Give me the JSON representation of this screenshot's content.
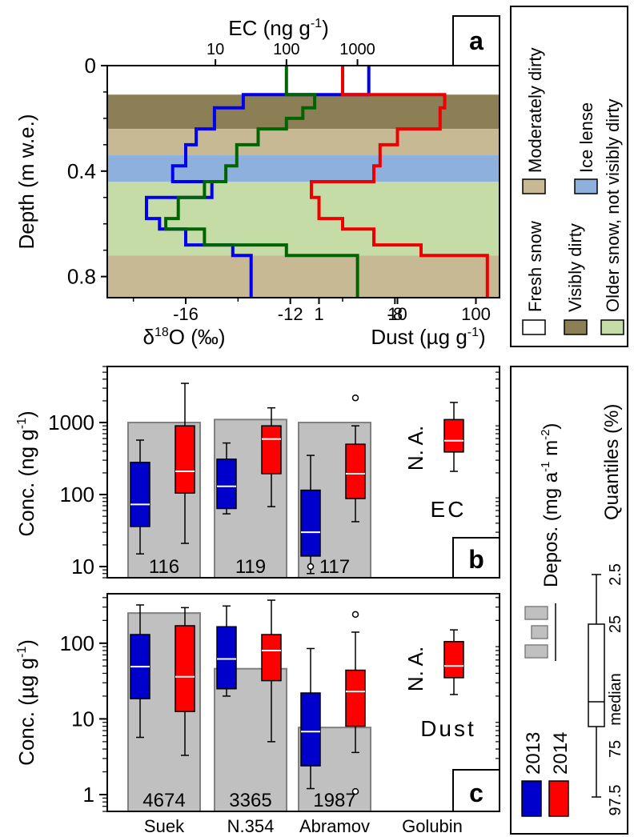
{
  "colors": {
    "fresh_snow": "#ffffff",
    "visibly_dirty": "#8c7f55",
    "moderately_dirty": "#c7b993",
    "ice_lense": "#8eb0dd",
    "older_snow": "#c6dca6",
    "d18o_line": "#0000ee",
    "ec_line": "#006400",
    "dust_line": "#ee0000",
    "box_2013": "#0000cc",
    "box_2014": "#ff0000",
    "deposition_bar": "#c0c0c0",
    "deposition_text": "#808080"
  },
  "panel_a": {
    "panel_label": "a",
    "top_axis_title": "EC (ng g",
    "top_axis_title_sup": "-1",
    "top_axis_title_end": ")",
    "top_ticks": [
      "10",
      "100",
      "1000"
    ],
    "y_axis_title": "Depth (m w.e.)",
    "y_ticks": [
      "0",
      "0.4",
      "0.8"
    ],
    "bottom_left_ticks": [
      "-16",
      "-12",
      "-8"
    ],
    "bottom_left_title_main": "δ",
    "bottom_left_title_sup": "18",
    "bottom_left_title_end": "O (‰)",
    "bottom_right_ticks": [
      "1",
      "10",
      "100"
    ],
    "bottom_right_title": "Dust (µg g",
    "bottom_right_title_sup": "-1",
    "bottom_right_title_end": ")"
  },
  "legend_a": {
    "fresh_snow": "Fresh snow",
    "visibly_dirty": "Visibly dirty",
    "moderately_dirty": "Moderately dirty",
    "ice_lense": "Ice lense",
    "older_snow": "Older snow, not visibly dirty"
  },
  "panel_b": {
    "panel_label": "b",
    "y_axis_title": "Conc. (ng g",
    "y_axis_title_sup": "-1",
    "y_axis_title_end": ")",
    "y_ticks": [
      "10",
      "100",
      "1000"
    ],
    "species_label": "EC",
    "na_label": "N. A.",
    "deposition_labels": [
      "116",
      "119",
      "117"
    ]
  },
  "panel_c": {
    "panel_label": "c",
    "y_axis_title": "Conc. (µg g",
    "y_axis_title_sup": "-1",
    "y_axis_title_end": ")",
    "y_ticks": [
      "1",
      "10",
      "100"
    ],
    "species_label": "Dust",
    "na_label": "N. A.",
    "deposition_labels": [
      "4674",
      "3365",
      "1987"
    ],
    "x_labels": [
      "Suek",
      "N.354",
      "Abramov",
      "Golubin"
    ]
  },
  "legend_bc": {
    "deposition_title": "Depos. (mg a",
    "deposition_title_sup": "-1",
    "deposition_title_mid": " m",
    "deposition_title_sup2": "-2",
    "deposition_title_end": ")",
    "quantiles_title": "Quantiles (%)",
    "quantile_labels": [
      "2.5",
      "25",
      "median",
      "75",
      "97.5"
    ],
    "year_2013": "2013",
    "year_2014": "2014"
  },
  "chart_data": [
    {
      "type": "line",
      "panel": "a",
      "y_axis": "Depth (m w.e.)",
      "ylim": [
        0,
        0.88
      ],
      "layers": [
        {
          "name": "Fresh snow",
          "from": 0.0,
          "to": 0.11
        },
        {
          "name": "Visibly dirty",
          "from": 0.11,
          "to": 0.24
        },
        {
          "name": "Moderately dirty",
          "from": 0.24,
          "to": 0.34
        },
        {
          "name": "Ice lense",
          "from": 0.34,
          "to": 0.44
        },
        {
          "name": "Older snow, not visibly dirty",
          "from": 0.44,
          "to": 0.72
        },
        {
          "name": "Moderately dirty",
          "from": 0.72,
          "to": 0.88
        }
      ],
      "series": [
        {
          "name": "δ18O (‰)",
          "axis": "bottom-left",
          "xlim": [
            -19,
            -4
          ],
          "steps": [
            {
              "from": 0.0,
              "to": 0.11,
              "value": -9.0
            },
            {
              "from": 0.11,
              "to": 0.16,
              "value": -13.8
            },
            {
              "from": 0.16,
              "to": 0.24,
              "value": -14.9
            },
            {
              "from": 0.24,
              "to": 0.3,
              "value": -15.6
            },
            {
              "from": 0.3,
              "to": 0.38,
              "value": -16.0
            },
            {
              "from": 0.38,
              "to": 0.44,
              "value": -16.5
            },
            {
              "from": 0.44,
              "to": 0.5,
              "value": -15.0
            },
            {
              "from": 0.5,
              "to": 0.58,
              "value": -17.5
            },
            {
              "from": 0.58,
              "to": 0.62,
              "value": -17.0
            },
            {
              "from": 0.62,
              "to": 0.68,
              "value": -16.0
            },
            {
              "from": 0.68,
              "to": 0.72,
              "value": -14.2
            },
            {
              "from": 0.72,
              "to": 0.88,
              "value": -13.5
            }
          ]
        },
        {
          "name": "EC (ng g-1)",
          "axis": "top-log",
          "xlim": [
            0.3,
            100000
          ],
          "steps": [
            {
              "from": 0.0,
              "to": 0.11,
              "value": 100
            },
            {
              "from": 0.11,
              "to": 0.16,
              "value": 250
            },
            {
              "from": 0.16,
              "to": 0.2,
              "value": 170
            },
            {
              "from": 0.2,
              "to": 0.24,
              "value": 100
            },
            {
              "from": 0.24,
              "to": 0.3,
              "value": 40
            },
            {
              "from": 0.3,
              "to": 0.38,
              "value": 20
            },
            {
              "from": 0.38,
              "to": 0.44,
              "value": 14
            },
            {
              "from": 0.44,
              "to": 0.5,
              "value": 7
            },
            {
              "from": 0.5,
              "to": 0.58,
              "value": 3
            },
            {
              "from": 0.58,
              "to": 0.62,
              "value": 2
            },
            {
              "from": 0.62,
              "to": 0.68,
              "value": 7
            },
            {
              "from": 0.68,
              "to": 0.72,
              "value": 100
            },
            {
              "from": 0.72,
              "to": 0.88,
              "value": 1000
            }
          ]
        },
        {
          "name": "Dust (µg g-1)",
          "axis": "bottom-right-log",
          "xlim": [
            0.002,
            200
          ],
          "steps": [
            {
              "from": 0.0,
              "to": 0.11,
              "value": 2
            },
            {
              "from": 0.11,
              "to": 0.16,
              "value": 40
            },
            {
              "from": 0.16,
              "to": 0.24,
              "value": 35
            },
            {
              "from": 0.24,
              "to": 0.3,
              "value": 10
            },
            {
              "from": 0.3,
              "to": 0.38,
              "value": 6
            },
            {
              "from": 0.38,
              "to": 0.44,
              "value": 5
            },
            {
              "from": 0.44,
              "to": 0.5,
              "value": 0.8
            },
            {
              "from": 0.5,
              "to": 0.58,
              "value": 1
            },
            {
              "from": 0.58,
              "to": 0.62,
              "value": 2
            },
            {
              "from": 0.62,
              "to": 0.68,
              "value": 5
            },
            {
              "from": 0.68,
              "to": 0.72,
              "value": 20
            },
            {
              "from": 0.72,
              "to": 0.88,
              "value": 140
            }
          ]
        }
      ]
    },
    {
      "type": "box",
      "panel": "b",
      "scale": "log",
      "ylim": [
        7,
        6000
      ],
      "categories": [
        "Suek",
        "N.354",
        "Abramov",
        "Golubin"
      ],
      "deposition": [
        1000,
        1100,
        1000,
        null
      ],
      "series": [
        {
          "name": "2013",
          "boxes": [
            {
              "p2_5": 15,
              "q25": 36,
              "median": 73,
              "q75": 280,
              "p97_5": 570,
              "outliers": []
            },
            {
              "p2_5": 54,
              "q25": 64,
              "median": 130,
              "q75": 310,
              "p97_5": 520,
              "outliers": []
            },
            {
              "p2_5": 8,
              "q25": 14,
              "median": 30,
              "q75": 115,
              "p97_5": 350,
              "outliers": [
                10
              ]
            },
            null
          ]
        },
        {
          "name": "2014",
          "boxes": [
            {
              "p2_5": 21,
              "q25": 105,
              "median": 210,
              "q75": 900,
              "p97_5": 3500,
              "outliers": []
            },
            {
              "p2_5": 68,
              "q25": 195,
              "median": 590,
              "q75": 900,
              "p97_5": 1600,
              "outliers": []
            },
            {
              "p2_5": 42,
              "q25": 88,
              "median": 195,
              "q75": 500,
              "p97_5": 900,
              "outliers": [
                2200
              ]
            },
            {
              "p2_5": 210,
              "q25": 390,
              "median": 560,
              "q75": 1100,
              "p97_5": 1900,
              "outliers": []
            }
          ]
        }
      ]
    },
    {
      "type": "box",
      "panel": "c",
      "scale": "log",
      "ylim": [
        0.6,
        450
      ],
      "categories": [
        "Suek",
        "N.354",
        "Abramov",
        "Golubin"
      ],
      "deposition": [
        250,
        46,
        7.7,
        null
      ],
      "series": [
        {
          "name": "2013",
          "boxes": [
            {
              "p2_5": 5.7,
              "q25": 18.5,
              "median": 49,
              "q75": 130,
              "p97_5": 320,
              "outliers": []
            },
            {
              "p2_5": 20,
              "q25": 25,
              "median": 62,
              "q75": 165,
              "p97_5": 310,
              "outliers": []
            },
            {
              "p2_5": 1.2,
              "q25": 2.4,
              "median": 6.8,
              "q75": 22,
              "p97_5": 85,
              "outliers": []
            },
            null
          ]
        },
        {
          "name": "2014",
          "boxes": [
            {
              "p2_5": 3.3,
              "q25": 12.5,
              "median": 36,
              "q75": 170,
              "p97_5": 295,
              "outliers": []
            },
            {
              "p2_5": 5,
              "q25": 32,
              "median": 80,
              "q75": 130,
              "p97_5": 370,
              "outliers": []
            },
            {
              "p2_5": 3.6,
              "q25": 8,
              "median": 23,
              "q75": 44,
              "p97_5": 140,
              "outliers": [
                1.1,
                240
              ]
            },
            {
              "p2_5": 21,
              "q25": 35,
              "median": 50,
              "q75": 105,
              "p97_5": 150,
              "outliers": []
            }
          ]
        }
      ]
    }
  ]
}
